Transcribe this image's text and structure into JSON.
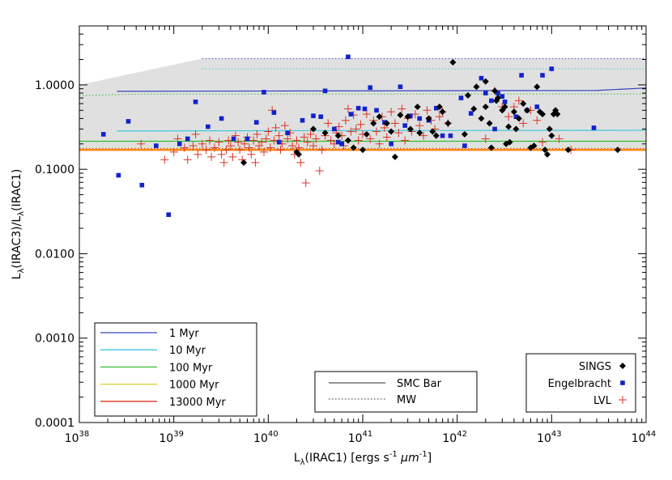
{
  "chart_data": {
    "type": "scatter",
    "xlabel_base": "L",
    "xlabel_sub": "λ",
    "xlabel_rest": "(IRAC1) [ergs s",
    "xlabel_exp": "-1",
    "xlabel_mu": "μm",
    "xlabel_close": "]",
    "ylabel_parts": [
      "L",
      "λ",
      "(IRAC3)/L",
      "λ",
      "(IRAC1)"
    ],
    "xscale": "log",
    "yscale": "log",
    "xlim": [
      1e+38,
      1e+44
    ],
    "ylim": [
      0.0001,
      5
    ],
    "x_ticks": [
      {
        "value": 1e+38,
        "base": "10",
        "exp": "38"
      },
      {
        "value": 1e+39,
        "base": "10",
        "exp": "39"
      },
      {
        "value": 1e+40,
        "base": "10",
        "exp": "40"
      },
      {
        "value": 1e+41,
        "base": "10",
        "exp": "41"
      },
      {
        "value": 1e+42,
        "base": "10",
        "exp": "42"
      },
      {
        "value": 1e+43,
        "base": "10",
        "exp": "43"
      },
      {
        "value": 1e+44,
        "base": "10",
        "exp": "44"
      }
    ],
    "y_ticks": [
      {
        "value": 1.0,
        "label": "1.0000"
      },
      {
        "value": 0.1,
        "label": "0.1000"
      },
      {
        "value": 0.01,
        "label": "0.0100"
      },
      {
        "value": 0.001,
        "label": "0.0010"
      },
      {
        "value": 0.0001,
        "label": "0.0001"
      }
    ],
    "band": {
      "color": "#e0e0e0",
      "upper": [
        [
          1e+38,
          1.0
        ],
        [
          2e+39,
          2.05
        ],
        [
          1e+44,
          2.05
        ]
      ],
      "lower": [
        [
          1e+38,
          0.17
        ],
        [
          1e+44,
          0.17
        ]
      ]
    },
    "model_lines": [
      {
        "name": "1 Myr",
        "color": "#3344bb",
        "smc": [
          [
            2.5e+38,
            0.84
          ],
          [
            3e+43,
            0.86
          ],
          [
            1e+44,
            0.92
          ]
        ],
        "mw": [
          [
            2e+39,
            2.05
          ],
          [
            1e+44,
            2.05
          ]
        ]
      },
      {
        "name": "10 Myr",
        "color": "#40c8e0",
        "smc": [
          [
            2.5e+38,
            0.285
          ],
          [
            1e+44,
            0.29
          ]
        ],
        "mw": [
          [
            2e+39,
            1.55
          ],
          [
            1e+44,
            1.55
          ]
        ]
      },
      {
        "name": "100 Myr",
        "color": "#33bb33",
        "smc": [
          [
            1e+38,
            0.215
          ],
          [
            1e+44,
            0.215
          ]
        ],
        "mw": [
          [
            1e+38,
            0.75
          ],
          [
            5e+38,
            0.78
          ],
          [
            1e+44,
            0.78
          ]
        ]
      },
      {
        "name": "1000 Myr",
        "color": "#ddcc33",
        "smc": [
          [
            1e+38,
            0.172
          ],
          [
            1e+44,
            0.172
          ]
        ],
        "mw": [
          [
            1e+38,
            0.178
          ],
          [
            1e+44,
            0.178
          ]
        ]
      },
      {
        "name": "13000 Myr",
        "color": "#dd3322",
        "smc": [
          [
            1e+38,
            0.168
          ],
          [
            1e+44,
            0.168
          ]
        ],
        "mw": [
          [
            1e+38,
            0.176
          ],
          [
            1e+44,
            0.176
          ]
        ]
      }
    ],
    "orange_line": {
      "color": "#ff8800",
      "y": 0.17
    },
    "legend_models_title_entries": [
      "1 Myr",
      "10 Myr",
      "100 Myr",
      "1000 Myr",
      "13000 Myr"
    ],
    "legend_styles": [
      {
        "label": "SMC Bar",
        "dash": "solid"
      },
      {
        "label": "MW",
        "dash": "dotted"
      }
    ],
    "legend_samples": [
      {
        "label": "SINGS",
        "marker": "diamond",
        "color": "#000000"
      },
      {
        "label": "Engelbracht",
        "marker": "square",
        "color": "#1122cc"
      },
      {
        "label": "LVL",
        "marker": "plus",
        "color": "#dd3322"
      }
    ],
    "series": [
      {
        "name": "SINGS",
        "marker": "diamond",
        "color": "#000000",
        "points": [
          [
            5.5e+39,
            0.12
          ],
          [
            2e+40,
            0.16
          ],
          [
            2.1e+40,
            0.15
          ],
          [
            3e+40,
            0.3
          ],
          [
            4e+40,
            0.27
          ],
          [
            5.5e+40,
            0.25
          ],
          [
            7e+40,
            0.22
          ],
          [
            8e+40,
            0.18
          ],
          [
            1e+41,
            0.17
          ],
          [
            1.1e+41,
            0.26
          ],
          [
            1.3e+41,
            0.35
          ],
          [
            1.5e+41,
            0.42
          ],
          [
            1.8e+41,
            0.35
          ],
          [
            2e+41,
            0.28
          ],
          [
            2.2e+41,
            0.14
          ],
          [
            2.5e+41,
            0.44
          ],
          [
            3e+41,
            0.42
          ],
          [
            3.2e+41,
            0.3
          ],
          [
            3.8e+41,
            0.55
          ],
          [
            4e+41,
            0.27
          ],
          [
            5e+41,
            0.4
          ],
          [
            5.5e+41,
            0.28
          ],
          [
            6e+41,
            0.25
          ],
          [
            6.5e+41,
            0.55
          ],
          [
            7e+41,
            0.48
          ],
          [
            8e+41,
            0.35
          ],
          [
            9e+41,
            1.85
          ],
          [
            1.2e+42,
            0.26
          ],
          [
            1.3e+42,
            0.75
          ],
          [
            1.5e+42,
            0.52
          ],
          [
            1.6e+42,
            0.95
          ],
          [
            1.8e+42,
            0.4
          ],
          [
            2e+42,
            1.1
          ],
          [
            2e+42,
            0.55
          ],
          [
            2.2e+42,
            0.35
          ],
          [
            2.3e+42,
            0.18
          ],
          [
            2.5e+42,
            0.85
          ],
          [
            2.6e+42,
            0.65
          ],
          [
            2.7e+42,
            0.7
          ],
          [
            3e+42,
            0.5
          ],
          [
            3.2e+42,
            0.55
          ],
          [
            3.3e+42,
            0.2
          ],
          [
            3.5e+42,
            0.32
          ],
          [
            3.6e+42,
            0.21
          ],
          [
            4e+42,
            0.48
          ],
          [
            4.2e+42,
            0.3
          ],
          [
            4.5e+42,
            0.4
          ],
          [
            5e+42,
            0.6
          ],
          [
            5.5e+42,
            0.5
          ],
          [
            6e+42,
            0.18
          ],
          [
            6.5e+42,
            0.19
          ],
          [
            7e+42,
            0.95
          ],
          [
            7.5e+42,
            0.48
          ],
          [
            8e+42,
            0.45
          ],
          [
            8.5e+42,
            0.17
          ],
          [
            9e+42,
            0.15
          ],
          [
            9.5e+42,
            0.3
          ],
          [
            1e+43,
            0.25
          ],
          [
            1.05e+43,
            0.45
          ],
          [
            1.1e+43,
            0.5
          ],
          [
            1.15e+43,
            0.45
          ],
          [
            1.5e+43,
            0.17
          ],
          [
            5e+43,
            0.17
          ]
        ]
      },
      {
        "name": "Engelbracht",
        "marker": "square",
        "color": "#1122cc",
        "points": [
          [
            1.8e+38,
            0.26
          ],
          [
            2.6e+38,
            0.085
          ],
          [
            3.3e+38,
            0.37
          ],
          [
            4.6e+38,
            0.065
          ],
          [
            6.5e+38,
            0.19
          ],
          [
            8.8e+38,
            0.029
          ],
          [
            1.15e+39,
            0.2
          ],
          [
            1.4e+39,
            0.23
          ],
          [
            1.7e+39,
            0.63
          ],
          [
            2.3e+39,
            0.32
          ],
          [
            3.2e+39,
            0.4
          ],
          [
            4.3e+39,
            0.23
          ],
          [
            6e+39,
            0.23
          ],
          [
            7.5e+39,
            0.36
          ],
          [
            9e+39,
            0.82
          ],
          [
            1.15e+40,
            0.47
          ],
          [
            1.3e+40,
            0.21
          ],
          [
            1.6e+40,
            0.27
          ],
          [
            2.3e+40,
            0.38
          ],
          [
            3e+40,
            0.43
          ],
          [
            3.6e+40,
            0.42
          ],
          [
            4e+40,
            0.85
          ],
          [
            5e+40,
            0.3
          ],
          [
            5.5e+40,
            0.21
          ],
          [
            6e+40,
            0.2
          ],
          [
            7e+40,
            2.15
          ],
          [
            7.5e+40,
            0.45
          ],
          [
            9e+40,
            0.53
          ],
          [
            1.05e+41,
            0.52
          ],
          [
            1.2e+41,
            0.93
          ],
          [
            1.4e+41,
            0.5
          ],
          [
            1.7e+41,
            0.36
          ],
          [
            2e+41,
            0.2
          ],
          [
            2.5e+41,
            0.95
          ],
          [
            2.8e+41,
            0.33
          ],
          [
            3.2e+41,
            0.43
          ],
          [
            4e+41,
            0.4
          ],
          [
            5e+41,
            0.38
          ],
          [
            6e+41,
            0.53
          ],
          [
            7e+41,
            0.25
          ],
          [
            8.5e+41,
            0.25
          ],
          [
            1.1e+42,
            0.7
          ],
          [
            1.2e+42,
            0.19
          ],
          [
            1.4e+42,
            0.46
          ],
          [
            1.8e+42,
            1.2
          ],
          [
            2e+42,
            0.8
          ],
          [
            2.3e+42,
            0.65
          ],
          [
            2.5e+42,
            0.3
          ],
          [
            2.7e+42,
            0.8
          ],
          [
            3e+42,
            0.73
          ],
          [
            3.2e+42,
            0.63
          ],
          [
            4.2e+42,
            0.42
          ],
          [
            4.8e+42,
            1.3
          ],
          [
            5.5e+42,
            0.5
          ],
          [
            7e+42,
            0.55
          ],
          [
            8e+42,
            1.3
          ],
          [
            1e+43,
            1.55
          ],
          [
            2.8e+43,
            0.31
          ]
        ]
      },
      {
        "name": "LVL",
        "marker": "plus",
        "color": "#dd3322",
        "points": [
          [
            4.5e+38,
            0.2
          ],
          [
            8e+38,
            0.13
          ],
          [
            1e+39,
            0.16
          ],
          [
            1.1e+39,
            0.23
          ],
          [
            1.3e+39,
            0.18
          ],
          [
            1.4e+39,
            0.13
          ],
          [
            1.6e+39,
            0.19
          ],
          [
            1.7e+39,
            0.26
          ],
          [
            1.8e+39,
            0.15
          ],
          [
            2e+39,
            0.2
          ],
          [
            2.2e+39,
            0.17
          ],
          [
            2.4e+39,
            0.22
          ],
          [
            2.5e+39,
            0.14
          ],
          [
            2.7e+39,
            0.18
          ],
          [
            3e+39,
            0.21
          ],
          [
            3.2e+39,
            0.15
          ],
          [
            3.4e+39,
            0.12
          ],
          [
            3.6e+39,
            0.17
          ],
          [
            3.8e+39,
            0.22
          ],
          [
            4e+39,
            0.19
          ],
          [
            4.2e+39,
            0.14
          ],
          [
            4.5e+39,
            0.25
          ],
          [
            4.8e+39,
            0.21
          ],
          [
            5e+39,
            0.17
          ],
          [
            5.3e+39,
            0.13
          ],
          [
            5.6e+39,
            0.2
          ],
          [
            6e+39,
            0.24
          ],
          [
            6.3e+39,
            0.18
          ],
          [
            6.6e+39,
            0.15
          ],
          [
            7e+39,
            0.22
          ],
          [
            7.3e+39,
            0.12
          ],
          [
            7.6e+39,
            0.26
          ],
          [
            8e+39,
            0.19
          ],
          [
            8.5e+39,
            0.21
          ],
          [
            9e+39,
            0.16
          ],
          [
            9.5e+39,
            0.23
          ],
          [
            1e+40,
            0.28
          ],
          [
            1.05e+40,
            0.18
          ],
          [
            1.1e+40,
            0.5
          ],
          [
            1.15e+40,
            0.22
          ],
          [
            1.2e+40,
            0.31
          ],
          [
            1.3e+40,
            0.25
          ],
          [
            1.35e+40,
            0.17
          ],
          [
            1.4e+40,
            0.2
          ],
          [
            1.5e+40,
            0.33
          ],
          [
            1.6e+40,
            0.23
          ],
          [
            1.7e+40,
            0.27
          ],
          [
            1.8e+40,
            0.19
          ],
          [
            1.9e+40,
            0.15
          ],
          [
            2e+40,
            0.22
          ],
          [
            2.1e+40,
            0.18
          ],
          [
            2.2e+40,
            0.12
          ],
          [
            2.4e+40,
            0.24
          ],
          [
            2.5e+40,
            0.069
          ],
          [
            2.6e+40,
            0.21
          ],
          [
            2.8e+40,
            0.26
          ],
          [
            3e+40,
            0.19
          ],
          [
            3.2e+40,
            0.23
          ],
          [
            3.5e+40,
            0.096
          ],
          [
            3.7e+40,
            0.17
          ],
          [
            4e+40,
            0.25
          ],
          [
            4.3e+40,
            0.35
          ],
          [
            4.6e+40,
            0.22
          ],
          [
            5e+40,
            0.2
          ],
          [
            5.3e+40,
            0.27
          ],
          [
            5.6e+40,
            0.32
          ],
          [
            6e+40,
            0.25
          ],
          [
            6.3e+40,
            0.19
          ],
          [
            6.6e+40,
            0.38
          ],
          [
            7e+40,
            0.52
          ],
          [
            7.5e+40,
            0.28
          ],
          [
            8e+40,
            0.44
          ],
          [
            8.5e+40,
            0.3
          ],
          [
            9e+40,
            0.22
          ],
          [
            9.5e+40,
            0.34
          ],
          [
            1e+41,
            0.26
          ],
          [
            1.1e+41,
            0.45
          ],
          [
            1.2e+41,
            0.23
          ],
          [
            1.3e+41,
            0.38
          ],
          [
            1.4e+41,
            0.28
          ],
          [
            1.5e+41,
            0.2
          ],
          [
            1.6e+41,
            0.42
          ],
          [
            1.7e+41,
            0.31
          ],
          [
            1.8e+41,
            0.24
          ],
          [
            2e+41,
            0.48
          ],
          [
            2.2e+41,
            0.35
          ],
          [
            2.4e+41,
            0.27
          ],
          [
            2.6e+41,
            0.52
          ],
          [
            2.8e+41,
            0.22
          ],
          [
            3e+41,
            0.4
          ],
          [
            3.3e+41,
            0.28
          ],
          [
            3.6e+41,
            0.45
          ],
          [
            4e+41,
            0.33
          ],
          [
            4.4e+41,
            0.25
          ],
          [
            4.8e+41,
            0.5
          ],
          [
            5.3e+41,
            0.38
          ],
          [
            5.8e+41,
            0.3
          ],
          [
            6.5e+41,
            0.42
          ],
          [
            7e+41,
            0.48
          ],
          [
            8e+41,
            0.35
          ],
          [
            2e+42,
            0.23
          ],
          [
            2.5e+42,
            0.85
          ],
          [
            3e+42,
            0.55
          ],
          [
            3.5e+42,
            0.42
          ],
          [
            4e+42,
            0.55
          ],
          [
            4.5e+42,
            0.65
          ],
          [
            5e+42,
            0.35
          ],
          [
            6e+42,
            0.5
          ],
          [
            7e+42,
            0.38
          ],
          [
            8e+42,
            0.21
          ],
          [
            1.2e+43,
            0.23
          ],
          [
            1.6e+43,
            0.17
          ]
        ]
      }
    ]
  }
}
